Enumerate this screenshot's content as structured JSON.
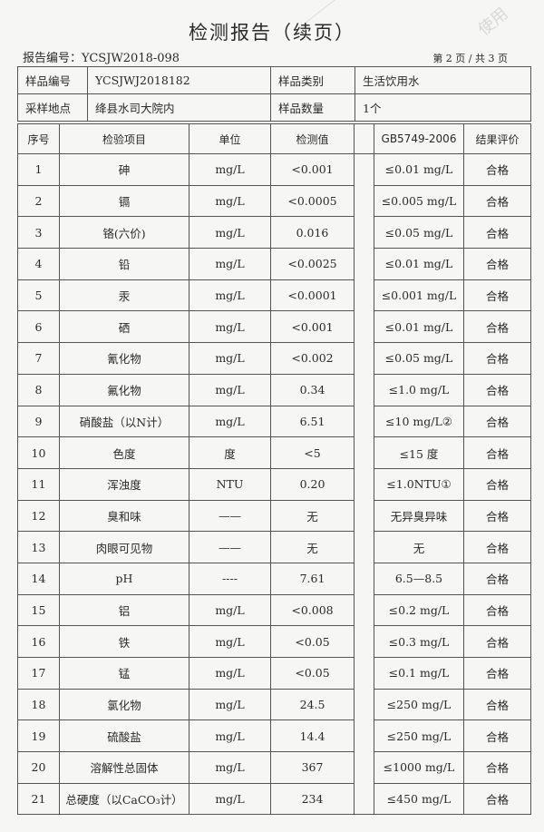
{
  "title": "检测报告（续页）",
  "report_no_label": "报告编号：YCSJW2018-098",
  "page_info": "第 2 页 / 共 3 页",
  "watermark": "使用",
  "info": {
    "sample_no_label": "样品编号",
    "sample_no": "YCSJWJ2018182",
    "sample_type_label": "样品类别",
    "sample_type": "生活饮用水",
    "location_label": "采样地点",
    "location": "绛县水司大院内",
    "quantity_label": "样品数量",
    "quantity": "1个"
  },
  "columns": [
    "序号",
    "检验项目",
    "单位",
    "检测值",
    "GB5749-2006",
    "结果评价"
  ],
  "rows": [
    {
      "no": "1",
      "item": "砷",
      "unit": "mg/L",
      "value": "<0.001",
      "std": "≤0.01 mg/L",
      "result": "合格"
    },
    {
      "no": "2",
      "item": "镉",
      "unit": "mg/L",
      "value": "<0.0005",
      "std": "≤0.005 mg/L",
      "result": "合格"
    },
    {
      "no": "3",
      "item": "铬(六价)",
      "unit": "mg/L",
      "value": "0.016",
      "std": "≤0.05 mg/L",
      "result": "合格"
    },
    {
      "no": "4",
      "item": "铅",
      "unit": "mg/L",
      "value": "<0.0025",
      "std": "≤0.01 mg/L",
      "result": "合格"
    },
    {
      "no": "5",
      "item": "汞",
      "unit": "mg/L",
      "value": "<0.0001",
      "std": "≤0.001 mg/L",
      "result": "合格"
    },
    {
      "no": "6",
      "item": "硒",
      "unit": "mg/L",
      "value": "<0.001",
      "std": "≤0.01 mg/L",
      "result": "合格"
    },
    {
      "no": "7",
      "item": "氰化物",
      "unit": "mg/L",
      "value": "<0.002",
      "std": "≤0.05 mg/L",
      "result": "合格"
    },
    {
      "no": "8",
      "item": "氟化物",
      "unit": "mg/L",
      "value": "0.34",
      "std": "≤1.0 mg/L",
      "result": "合格"
    },
    {
      "no": "9",
      "item": "硝酸盐（以N计）",
      "unit": "mg/L",
      "value": "6.51",
      "std": "≤10 mg/L②",
      "result": "合格"
    },
    {
      "no": "10",
      "item": "色度",
      "unit": "度",
      "value": "<5",
      "std": "≤15 度",
      "result": "合格"
    },
    {
      "no": "11",
      "item": "浑浊度",
      "unit": "NTU",
      "value": "0.20",
      "std": "≤1.0NTU①",
      "result": "合格"
    },
    {
      "no": "12",
      "item": "臭和味",
      "unit": "——",
      "value": "无",
      "std": "无异臭异味",
      "result": "合格"
    },
    {
      "no": "13",
      "item": "肉眼可见物",
      "unit": "——",
      "value": "无",
      "std": "无",
      "result": "合格"
    },
    {
      "no": "14",
      "item": "pH",
      "unit": "----",
      "value": "7.61",
      "std": "6.5—8.5",
      "result": "合格"
    },
    {
      "no": "15",
      "item": "铝",
      "unit": "mg/L",
      "value": "<0.008",
      "std": "≤0.2 mg/L",
      "result": "合格"
    },
    {
      "no": "16",
      "item": "铁",
      "unit": "mg/L",
      "value": "<0.05",
      "std": "≤0.3 mg/L",
      "result": "合格"
    },
    {
      "no": "17",
      "item": "锰",
      "unit": "mg/L",
      "value": "<0.05",
      "std": "≤0.1 mg/L",
      "result": "合格"
    },
    {
      "no": "18",
      "item": "氯化物",
      "unit": "mg/L",
      "value": "24.5",
      "std": "≤250 mg/L",
      "result": "合格"
    },
    {
      "no": "19",
      "item": "硫酸盐",
      "unit": "mg/L",
      "value": "14.4",
      "std": "≤250 mg/L",
      "result": "合格"
    },
    {
      "no": "20",
      "item": "溶解性总固体",
      "unit": "mg/L",
      "value": "367",
      "std": "≤1000 mg/L",
      "result": "合格"
    },
    {
      "no": "21",
      "item": "总硬度（以CaCO₃计）",
      "unit": "mg/L",
      "value": "234",
      "std": "≤450 mg/L",
      "result": "合格"
    }
  ]
}
